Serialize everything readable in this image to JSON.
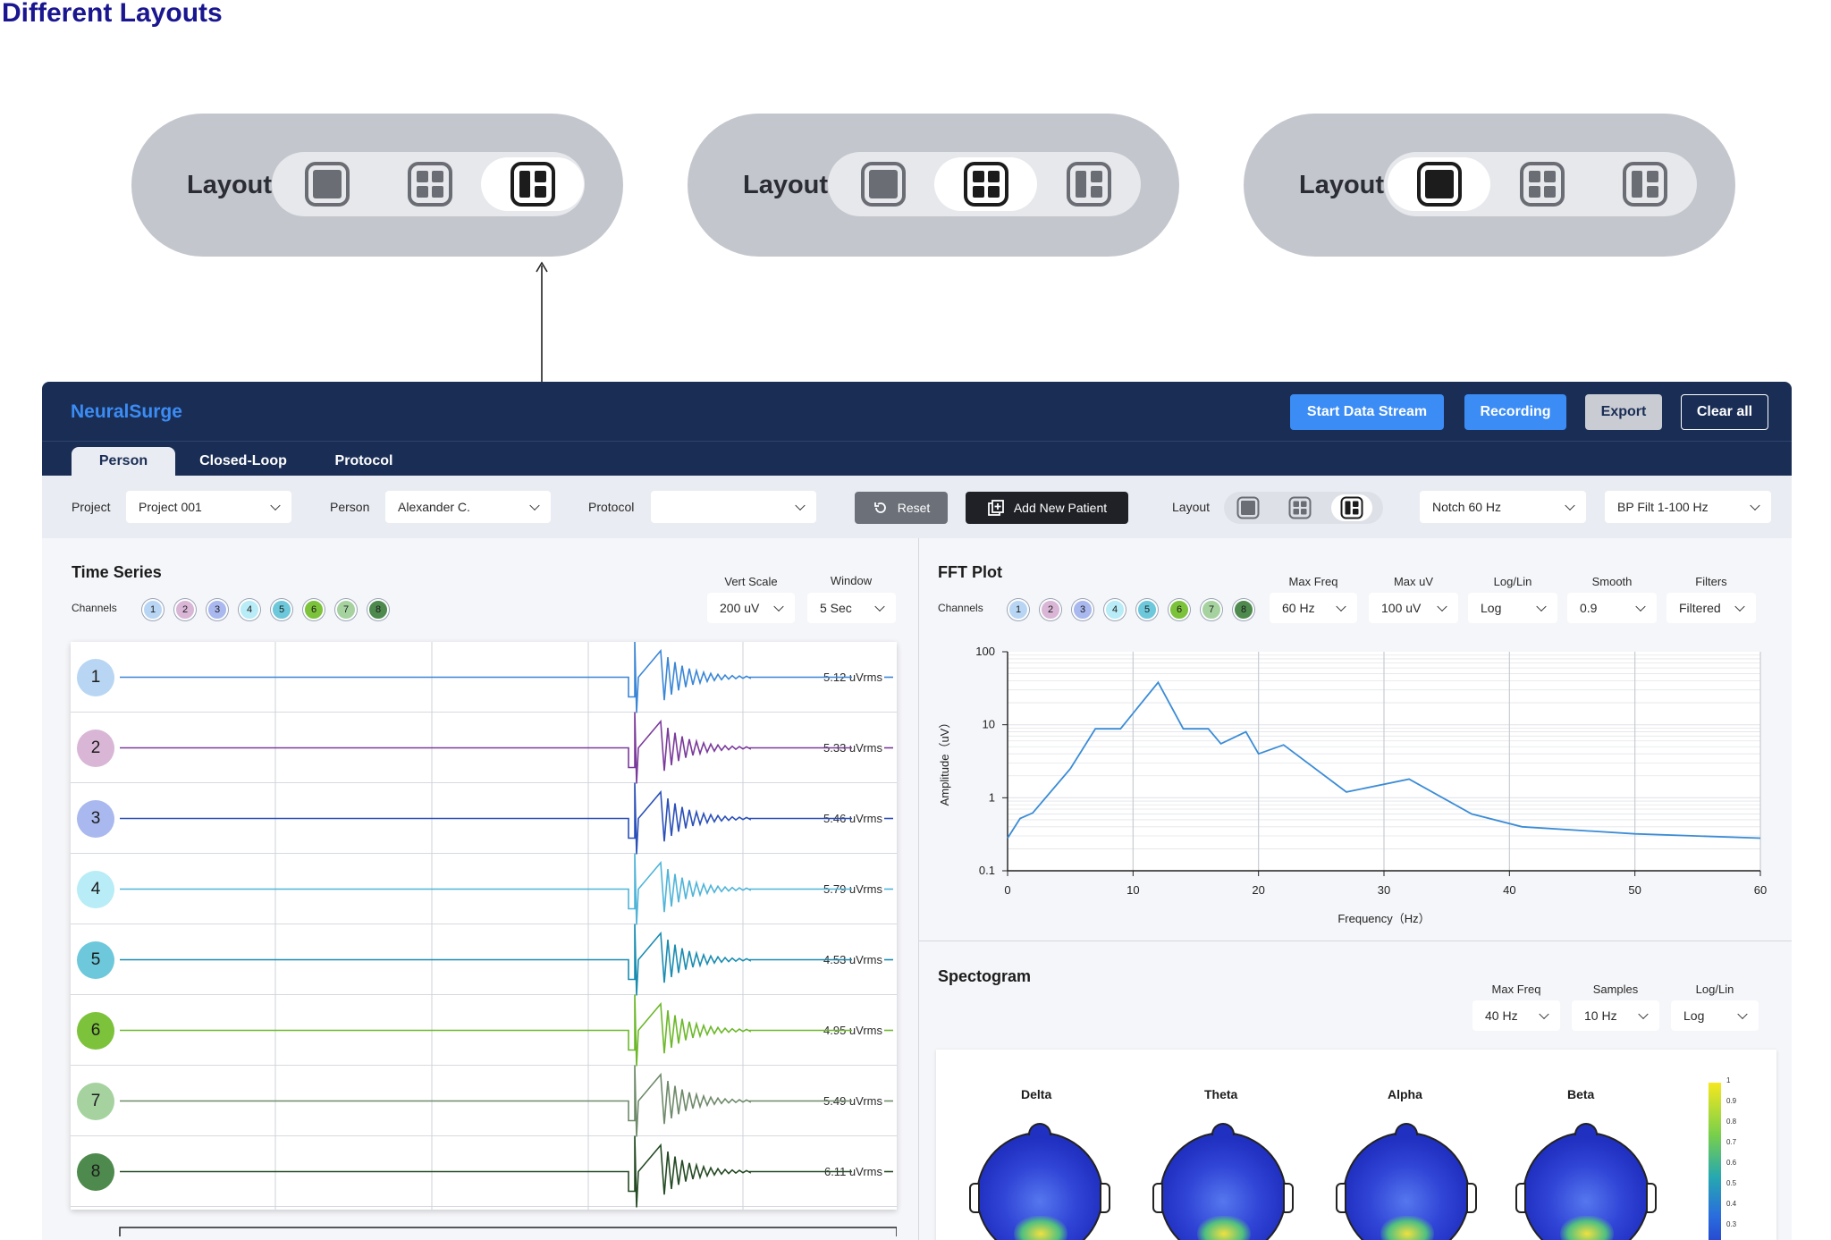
{
  "page_title": "Different Layouts",
  "layout_variants": [
    {
      "label": "Layout",
      "selected_index": 2
    },
    {
      "label": "Layout",
      "selected_index": 1
    },
    {
      "label": "Layout",
      "selected_index": 0
    }
  ],
  "app": {
    "brand": "NeuralSurge",
    "header_buttons": {
      "start": "Start Data Stream",
      "recording": "Recording",
      "export": "Export",
      "clear": "Clear all"
    },
    "tabs": [
      "Person",
      "Closed-Loop",
      "Protocol"
    ],
    "active_tab": 0,
    "controls": {
      "project_label": "Project",
      "project_value": "Project  001",
      "person_label": "Person",
      "person_value": "Alexander C.",
      "protocol_label": "Protocol",
      "protocol_value": "",
      "reset": "Reset",
      "add_patient": "Add New Patient",
      "layout_label": "Layout",
      "layout_selected_index": 2,
      "notch": "Notch 60 Hz",
      "bp_filter": "BP Filt 1-100 Hz"
    },
    "time_series": {
      "title": "Time Series",
      "channels_label": "Channels",
      "vert_scale_label": "Vert Scale",
      "vert_scale_value": "200 uV",
      "window_label": "Window",
      "window_value": "5 Sec",
      "channels": [
        {
          "n": "1",
          "value": "5.12 uVrms",
          "color": "#3a86d6",
          "bg": "#b8d6f3"
        },
        {
          "n": "2",
          "value": "5.33 uVrms",
          "color": "#7a3a9a",
          "bg": "#d9b6d6"
        },
        {
          "n": "3",
          "value": "5.46 uVrms",
          "color": "#2a4fb8",
          "bg": "#a9b8ee"
        },
        {
          "n": "4",
          "value": "5.79 uVrms",
          "color": "#4fb4d8",
          "bg": "#b8ecf6"
        },
        {
          "n": "5",
          "value": "4.53 uVrms",
          "color": "#1a8cb0",
          "bg": "#6cc8da"
        },
        {
          "n": "6",
          "value": "4.95 uVrms",
          "color": "#6cb82a",
          "bg": "#7cc23a"
        },
        {
          "n": "7",
          "value": "5.49 uVrms",
          "color": "#6e8a6a",
          "bg": "#a6d2a0"
        },
        {
          "n": "8",
          "value": "6.11 uVrms",
          "color": "#244a24",
          "bg": "#4e8a4e"
        }
      ]
    },
    "fft": {
      "title": "FFT Plot",
      "channels_label": "Channels",
      "max_freq_label": "Max Freq",
      "max_freq_value": "60 Hz",
      "max_uv_label": "Max uV",
      "max_uv_value": "100 uV",
      "loglin_label": "Log/Lin",
      "loglin_value": "Log",
      "smooth_label": "Smooth",
      "smooth_value": "0.9",
      "filters_label": "Filters",
      "filters_value": "Filtered"
    },
    "spectrogram": {
      "title": "Spectogram",
      "max_freq_label": "Max Freq",
      "max_freq_value": "40 Hz",
      "samples_label": "Samples",
      "samples_value": "10 Hz",
      "loglin_label": "Log/Lin",
      "loglin_value": "Log",
      "bands": [
        "Delta",
        "Theta",
        "Alpha",
        "Beta"
      ],
      "colorbar_ticks": [
        "1",
        "0.9",
        "0.8",
        "0.7",
        "0.6",
        "0.5",
        "0.4",
        "0.3"
      ]
    }
  },
  "chart_data": {
    "type": "line",
    "xlabel": "Frequency（Hz）",
    "ylabel": "Amplitude（uV）",
    "xlim": [
      0,
      60
    ],
    "ylim": [
      0.1,
      100
    ],
    "y_scale": "log",
    "x_ticks": [
      "0",
      "10",
      "20",
      "30",
      "40",
      "50",
      "60"
    ],
    "y_ticks": [
      "100",
      "10",
      "1",
      "0.1"
    ],
    "x": [
      0,
      1,
      2,
      5,
      7,
      9,
      12,
      14,
      16,
      17,
      19,
      20,
      22,
      27,
      32,
      37,
      41,
      50,
      60
    ],
    "values": [
      0.28,
      0.52,
      0.62,
      2.5,
      8.8,
      8.8,
      38,
      8.8,
      8.8,
      5.5,
      8,
      4,
      5.3,
      1.2,
      1.8,
      0.6,
      0.4,
      0.32,
      0.28
    ]
  }
}
